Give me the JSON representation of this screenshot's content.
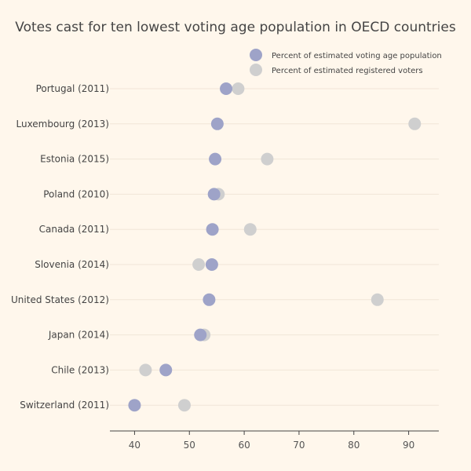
{
  "chart_data": {
    "type": "scatter",
    "title": "Votes cast for ten lowest voting age population in OECD countries",
    "xlabel": "",
    "ylabel": "",
    "xlim": [
      35.5,
      95.5
    ],
    "xticks": [
      40,
      50,
      60,
      70,
      80,
      90
    ],
    "legend_position": "top-right",
    "grid": true,
    "categories": [
      "Portugal (2011)",
      "Luxembourg (2013)",
      "Estonia (2015)",
      "Poland (2010)",
      "Canada (2011)",
      "Slovenia (2014)",
      "United States (2012)",
      "Japan (2014)",
      "Chile (2013)",
      "Switzerland (2011)"
    ],
    "series": [
      {
        "name": "Percent of estimated voting age population",
        "color": "#9ea3c8",
        "values": [
          56.7,
          55.1,
          54.7,
          54.5,
          54.2,
          54.1,
          53.6,
          52.0,
          45.7,
          40.0
        ]
      },
      {
        "name": "Percent of estimated registered voters",
        "color": "#cfcfcf",
        "values": [
          58.9,
          91.1,
          64.2,
          55.3,
          61.1,
          51.7,
          84.3,
          52.7,
          42.0,
          49.1
        ]
      }
    ]
  },
  "colors": {
    "background": "#fff7ec",
    "text": "#444444"
  }
}
